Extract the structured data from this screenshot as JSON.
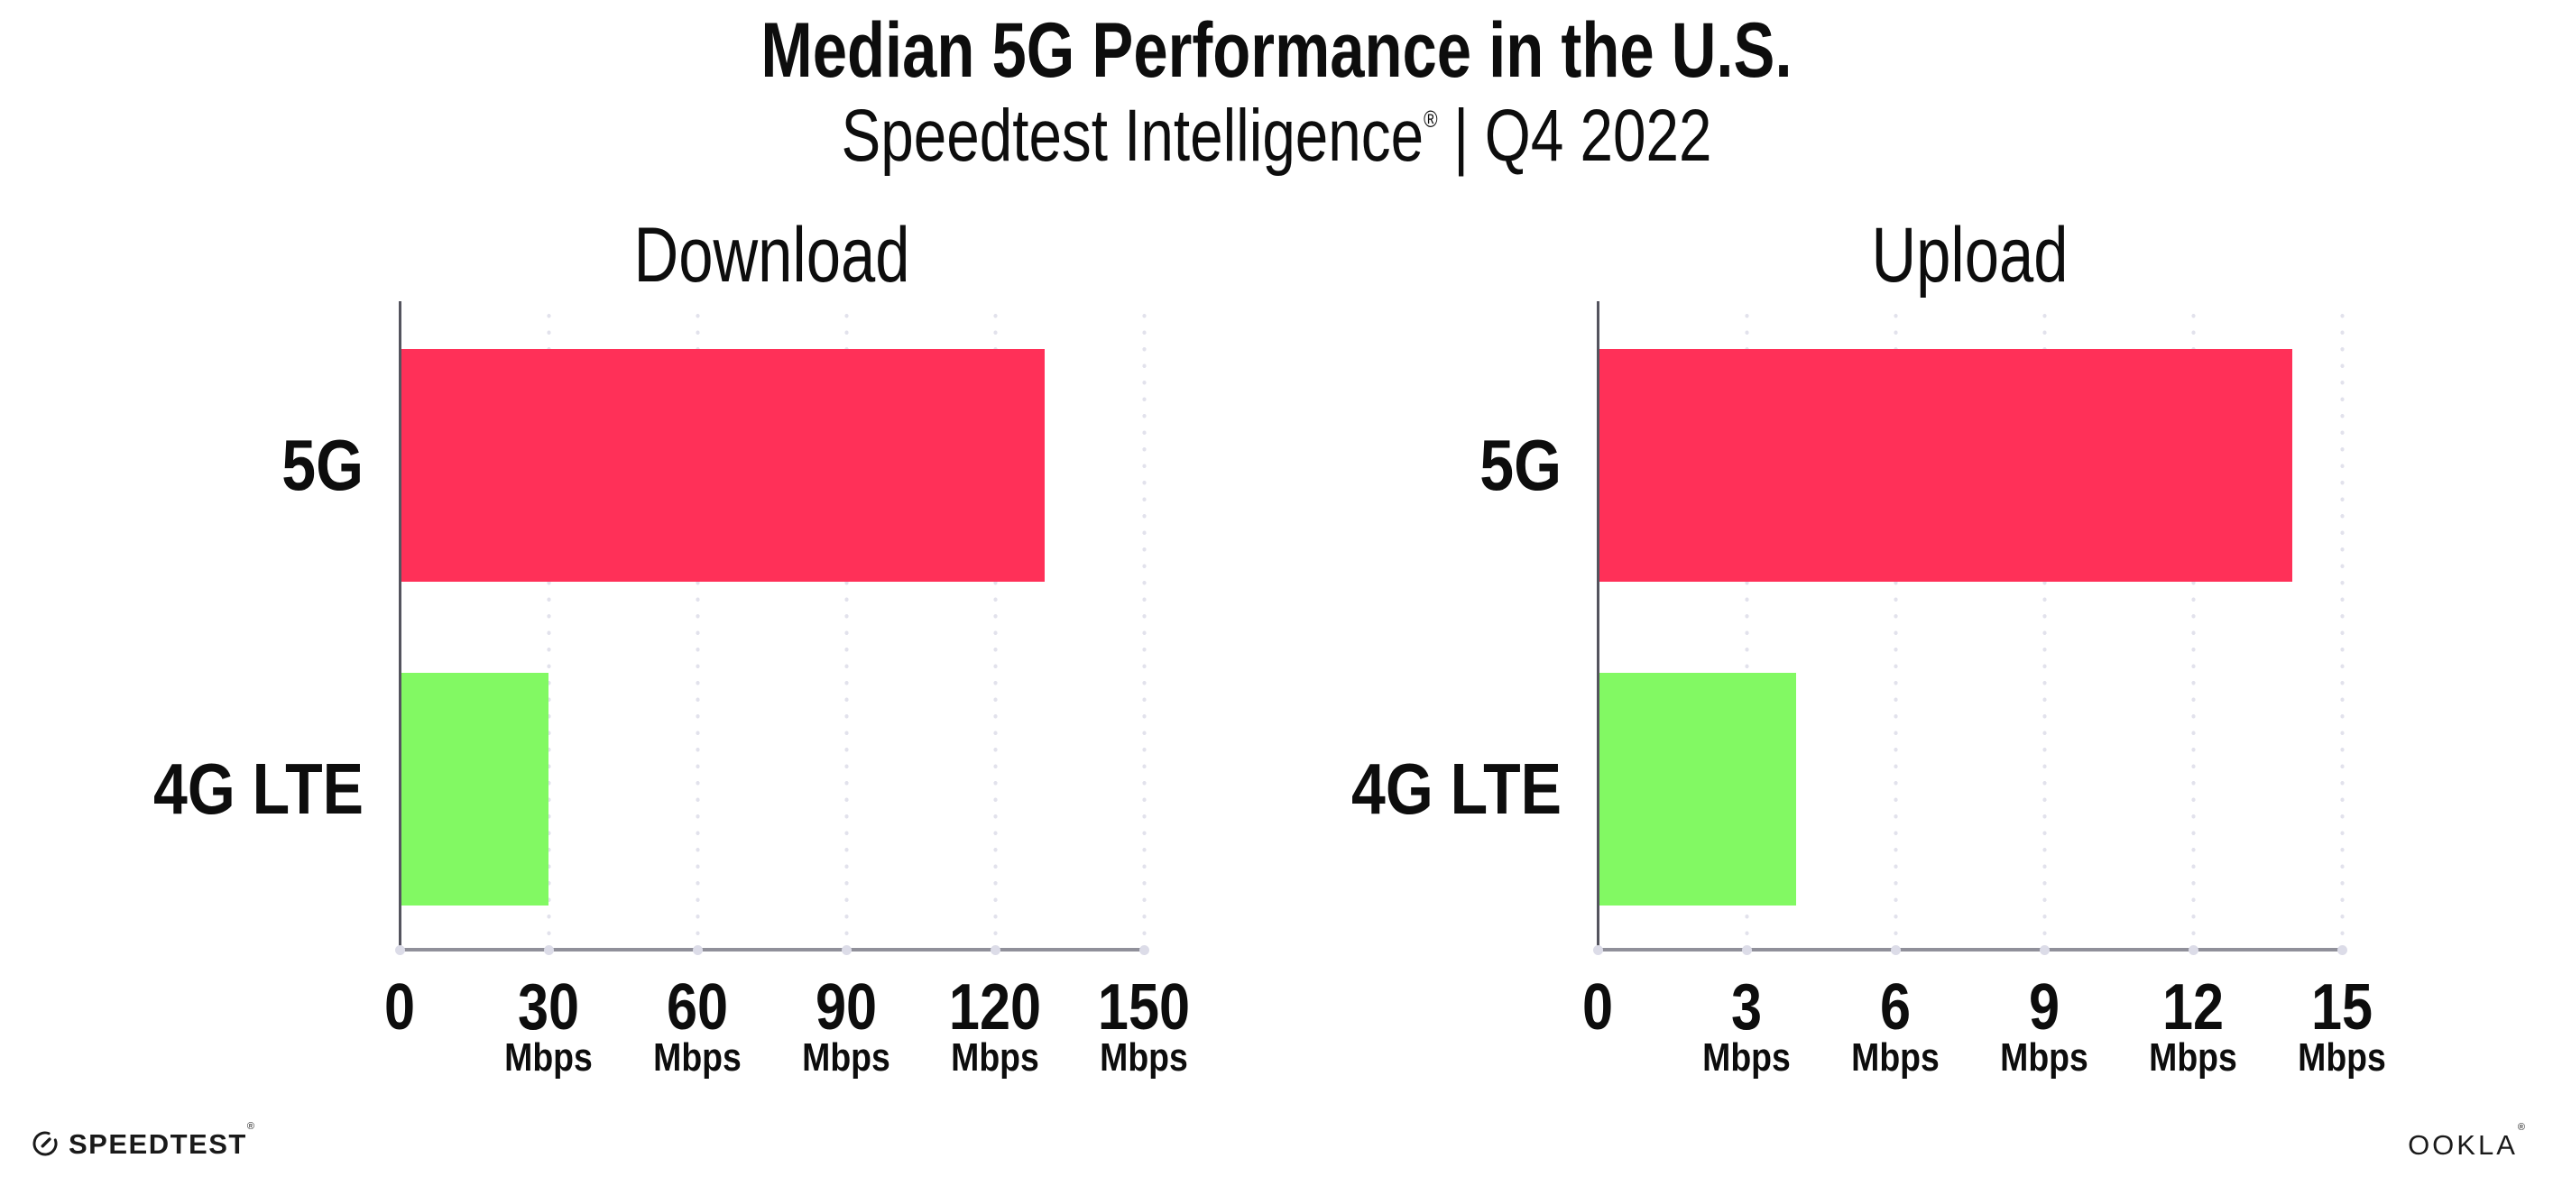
{
  "page_title": "Median 5G Performance in the U.S.",
  "subtitle": {
    "brand": "Speedtest Intelligence",
    "registered_mark": "®",
    "separator": "|",
    "period": "Q4 2022"
  },
  "chart_data": [
    {
      "type": "bar",
      "orientation": "horizontal",
      "title": "Download",
      "categories": [
        "5G",
        "4G LTE"
      ],
      "values": [
        130,
        30
      ],
      "value_unit": "Mbps",
      "xlim": [
        0,
        150
      ],
      "xticks": [
        0,
        30,
        60,
        90,
        120,
        150
      ],
      "xtick_unit_suffix": "Mbps",
      "bar_colors": [
        "#ff3058",
        "#82f963"
      ],
      "grid": "vertical dotted",
      "legend_position": "none"
    },
    {
      "type": "bar",
      "orientation": "horizontal",
      "title": "Upload",
      "categories": [
        "5G",
        "4G LTE"
      ],
      "values": [
        14,
        4
      ],
      "value_unit": "Mbps",
      "xlim": [
        0,
        15
      ],
      "xticks": [
        0,
        3,
        6,
        9,
        12,
        15
      ],
      "xtick_unit_suffix": "Mbps",
      "bar_colors": [
        "#ff3058",
        "#82f963"
      ],
      "grid": "vertical dotted",
      "legend_position": "none"
    }
  ],
  "footer": {
    "speedtest_wordmark": "SPEEDTEST",
    "speedtest_trademark": "®",
    "ookla_wordmark": "OOKLA",
    "ookla_trademark": "®"
  },
  "colors": {
    "background": "#ffffff",
    "bar_5g": "#ff3058",
    "bar_4g_lte": "#82f963",
    "gridline": "#e2e2ec",
    "x_axis": "#90909a",
    "y_axis": "#54545e",
    "text": "#0d0d0d"
  }
}
